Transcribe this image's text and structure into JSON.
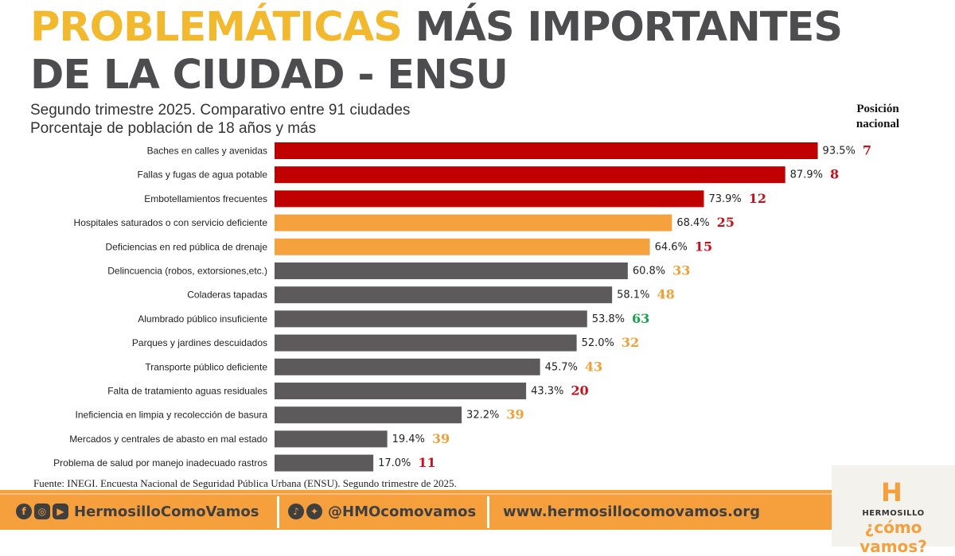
{
  "title": {
    "highlight": "PROBLEMÁTICAS",
    "line1_rest": "MÁS IMPORTANTES",
    "line2": "DE LA CIUDAD - ENSU"
  },
  "subtitle": {
    "line1": "Segundo trimestre 2025. Comparativo entre 91 ciudades",
    "line2": "Porcentaje de población de 18 años y más"
  },
  "position_header": {
    "line1": "Posición",
    "line2": "nacional"
  },
  "chart_data": {
    "type": "bar",
    "orientation": "horizontal",
    "xlim": [
      0,
      100
    ],
    "grid": false,
    "categories": [
      "Baches en calles y avenidas",
      "Fallas y fugas de agua potable",
      "Embotellamientos frecuentes",
      "Hospitales saturados o con servicio deficiente",
      "Deficiencias en red pública de drenaje",
      "Delincuencia (robos, extorsiones,etc.)",
      "Coladeras tapadas",
      "Alumbrado público insuficiente",
      "Parques y jardines descuidados",
      "Transporte público deficiente",
      "Falta de tratamiento aguas residuales",
      "Ineficiencia en limpia y recolección de basura",
      "Mercados y centrales de abasto en mal estado",
      "Problema de salud por manejo inadecuado rastros"
    ],
    "values": [
      93.5,
      87.9,
      73.9,
      68.4,
      64.6,
      60.8,
      58.1,
      53.8,
      52.0,
      45.7,
      43.3,
      32.2,
      19.4,
      17.0
    ],
    "value_labels": [
      "93.5%",
      "87.9%",
      "73.9%",
      "68.4%",
      "64.6%",
      "60.8%",
      "58.1%",
      "53.8%",
      "52.0%",
      "45.7%",
      "43.3%",
      "32.2%",
      "19.4%",
      "17.0%"
    ],
    "bar_colors": [
      "#c00000",
      "#c00000",
      "#c00000",
      "#f4a13e",
      "#f4a13e",
      "#5d5a5c",
      "#5d5a5c",
      "#5d5a5c",
      "#5d5a5c",
      "#5d5a5c",
      "#5d5a5c",
      "#5d5a5c",
      "#5d5a5c",
      "#5d5a5c"
    ],
    "positions": [
      "7",
      "8",
      "12",
      "25",
      "15",
      "33",
      "48",
      "63",
      "32",
      "43",
      "20",
      "39",
      "39",
      "11"
    ],
    "position_colors": [
      "#c8101c",
      "#c8101c",
      "#c8101c",
      "#c8101c",
      "#c8101c",
      "#f0a037",
      "#f0a037",
      "#1aa34a",
      "#f0a037",
      "#f0a037",
      "#c8101c",
      "#f0a037",
      "#f0a037",
      "#c8101c"
    ]
  },
  "source": "Fuente: INEGI. Encuesta Nacional de Seguridad Pública Urbana (ENSU). Segundo trimestre de 2025.",
  "footer": {
    "facebook_handle": "HermosilloComoVamos",
    "twitter_handle": "@HMOcomovamos",
    "website": "www.hermosillocomovamos.org",
    "icons": [
      "facebook-icon",
      "instagram-icon",
      "youtube-icon",
      "tiktok-icon",
      "twitter-icon"
    ],
    "accent_color": "#f6a03d"
  },
  "logo": {
    "mark": "H",
    "city": "HERMOSILLO",
    "tagline": "¿cómo vamos?"
  }
}
